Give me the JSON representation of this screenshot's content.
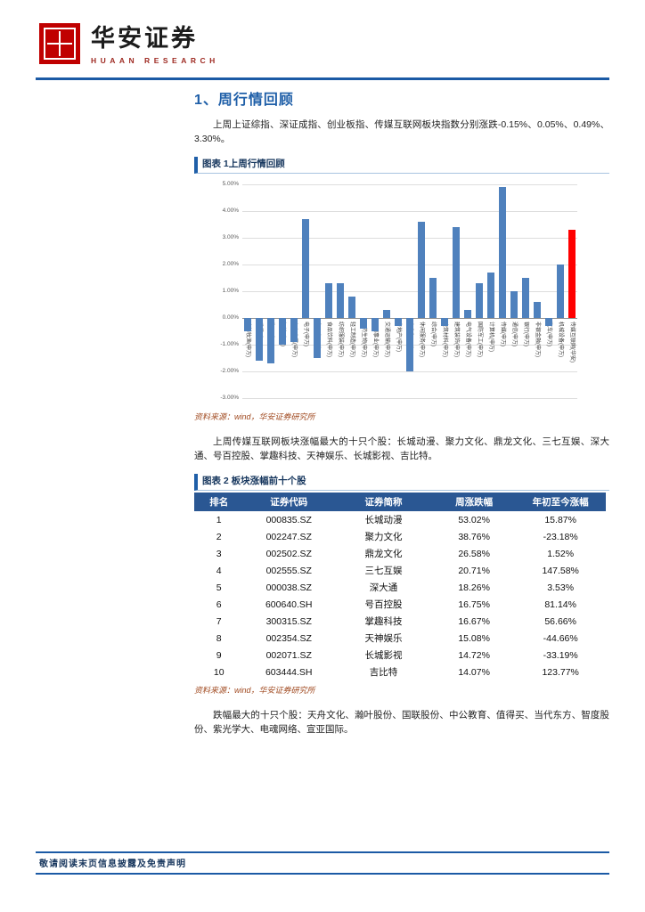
{
  "header": {
    "brand_cn": "华安证券",
    "brand_en": "HUAAN RESEARCH"
  },
  "section": {
    "title": "1、周行情回顾",
    "para1": "上周上证综指、深证成指、创业板指、传媒互联网板块指数分别涨跌-0.15%、0.05%、0.49%、3.30%。",
    "figure1_label": "图表 1上周行情回顾",
    "source1": "资料来源：wind，华安证券研究所",
    "para2": "上周传媒互联网板块涨幅最大的十只个股：长城动漫、聚力文化、鼎龙文化、三七互娱、深大通、号百控股、掌趣科技、天神娱乐、长城影视、吉比特。",
    "figure2_label": "图表 2 板块涨幅前十个股",
    "source2": "资料来源：wind，华安证券研究所",
    "para3": "跌幅最大的十只个股：天舟文化、瀚叶股份、国联股份、中公教育、值得买、当代东方、智度股份、紫光学大、电魂网络、宣亚国际。"
  },
  "chart_data": {
    "type": "bar",
    "title": "上周行情回顾",
    "categories": [
      "农林牧渔(申万)",
      "采掘(申万)",
      "化工(申万)",
      "钢铁(申万)",
      "有色金属(申万)",
      "电子(申万)",
      "家用电器(申万)",
      "食品饮料(申万)",
      "纺织服装(申万)",
      "轻工制造(申万)",
      "医药生物(申万)",
      "公用事业(申万)",
      "交通运输(申万)",
      "房地产(申万)",
      "商业贸易(申万)",
      "休闲服务(申万)",
      "综合(申万)",
      "建筑材料(申万)",
      "建筑装饰(申万)",
      "电气设备(申万)",
      "国防军工(申万)",
      "计算机(申万)",
      "传媒(申万)",
      "通信(申万)",
      "银行(申万)",
      "非银金融(申万)",
      "汽车(申万)",
      "机械设备(申万)",
      "传媒互联网(华安)"
    ],
    "values": [
      -0.5,
      -1.6,
      -1.7,
      -1.0,
      -0.9,
      3.7,
      -1.5,
      1.3,
      1.3,
      0.8,
      -0.4,
      -0.5,
      0.3,
      -0.3,
      -2.0,
      3.6,
      1.5,
      -0.3,
      3.4,
      0.3,
      1.3,
      1.7,
      4.9,
      1.0,
      1.5,
      0.6,
      -0.3,
      2.0,
      3.3
    ],
    "ylim": [
      -3,
      5
    ],
    "yticks": [
      "5.00%",
      "4.00%",
      "3.00%",
      "2.00%",
      "1.00%",
      "0.00%",
      "-1.00%",
      "-2.00%",
      "-3.00%"
    ],
    "bar_color": "#4F81BD",
    "highlight_index": 28,
    "highlight_color": "#FF0000",
    "grid": true,
    "legend": "none"
  },
  "table": {
    "headers": [
      "排名",
      "证券代码",
      "证券简称",
      "周涨跌幅",
      "年初至今涨幅"
    ],
    "rows": [
      [
        "1",
        "000835.SZ",
        "长城动漫",
        "53.02%",
        "15.87%"
      ],
      [
        "2",
        "002247.SZ",
        "聚力文化",
        "38.76%",
        "-23.18%"
      ],
      [
        "3",
        "002502.SZ",
        "鼎龙文化",
        "26.58%",
        "1.52%"
      ],
      [
        "4",
        "002555.SZ",
        "三七互娱",
        "20.71%",
        "147.58%"
      ],
      [
        "5",
        "000038.SZ",
        "深大通",
        "18.26%",
        "3.53%"
      ],
      [
        "6",
        "600640.SH",
        "号百控股",
        "16.75%",
        "81.14%"
      ],
      [
        "7",
        "300315.SZ",
        "掌趣科技",
        "16.67%",
        "56.66%"
      ],
      [
        "8",
        "002354.SZ",
        "天神娱乐",
        "15.08%",
        "-44.66%"
      ],
      [
        "9",
        "002071.SZ",
        "长城影视",
        "14.72%",
        "-33.19%"
      ],
      [
        "10",
        "603444.SH",
        "吉比特",
        "14.07%",
        "123.77%"
      ]
    ]
  },
  "footer": {
    "text": "敬请阅读末页信息披露及免责声明"
  }
}
